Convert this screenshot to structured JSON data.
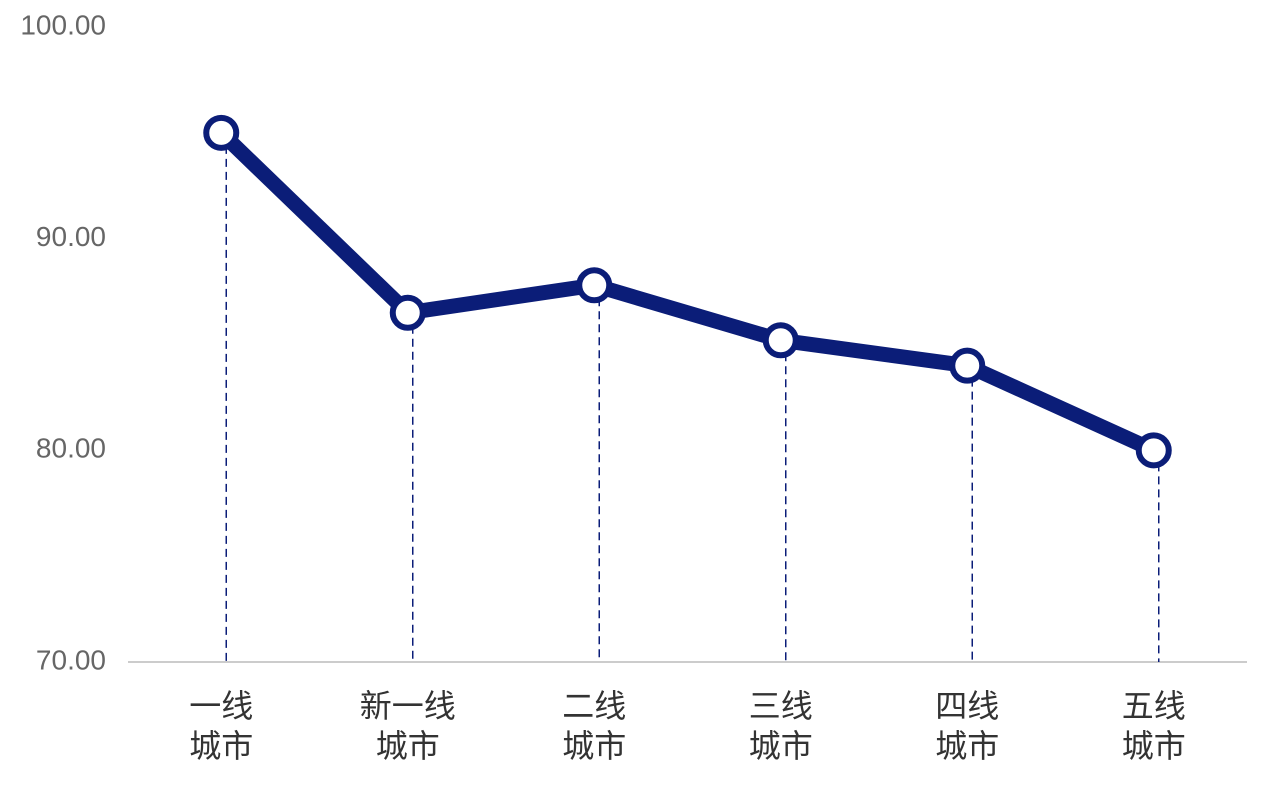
{
  "chart_data": {
    "type": "line",
    "categories": [
      "一线\n城市",
      "新一线\n城市",
      "二线\n城市",
      "三线\n城市",
      "四线\n城市",
      "五线\n城市"
    ],
    "series": [
      {
        "color": "#0b1d78",
        "values": [
          95.0,
          86.5,
          87.8,
          85.2,
          84.0,
          80.0
        ]
      }
    ],
    "ylim": [
      70,
      100
    ],
    "yticks": [
      {
        "value": 70,
        "label": "70.00"
      },
      {
        "value": 80,
        "label": "80.00"
      },
      {
        "value": 90,
        "label": "90.00"
      },
      {
        "value": 100,
        "label": "100.00"
      }
    ],
    "drop_lines": true
  }
}
